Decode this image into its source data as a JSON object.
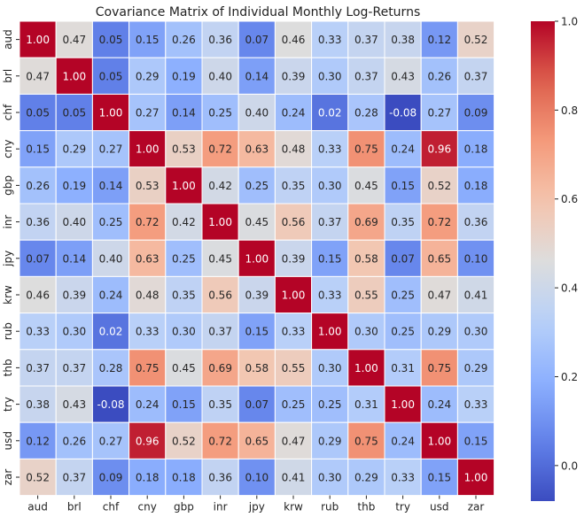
{
  "chart_data": {
    "type": "heatmap",
    "title": "Covariance Matrix of Individual Monthly Log-Returns",
    "xlabel": "",
    "ylabel": "",
    "categories": [
      "aud",
      "brl",
      "chf",
      "cny",
      "gbp",
      "inr",
      "jpy",
      "krw",
      "rub",
      "thb",
      "try",
      "usd",
      "zar"
    ],
    "values": [
      [
        1.0,
        0.47,
        0.05,
        0.15,
        0.26,
        0.36,
        0.07,
        0.46,
        0.33,
        0.37,
        0.38,
        0.12,
        0.52
      ],
      [
        0.47,
        1.0,
        0.05,
        0.29,
        0.19,
        0.4,
        0.14,
        0.39,
        0.3,
        0.37,
        0.43,
        0.26,
        0.37
      ],
      [
        0.05,
        0.05,
        1.0,
        0.27,
        0.14,
        0.25,
        0.4,
        0.24,
        0.02,
        0.28,
        -0.08,
        0.27,
        0.09
      ],
      [
        0.15,
        0.29,
        0.27,
        1.0,
        0.53,
        0.72,
        0.63,
        0.48,
        0.33,
        0.75,
        0.24,
        0.96,
        0.18
      ],
      [
        0.26,
        0.19,
        0.14,
        0.53,
        1.0,
        0.42,
        0.25,
        0.35,
        0.3,
        0.45,
        0.15,
        0.52,
        0.18
      ],
      [
        0.36,
        0.4,
        0.25,
        0.72,
        0.42,
        1.0,
        0.45,
        0.56,
        0.37,
        0.69,
        0.35,
        0.72,
        0.36
      ],
      [
        0.07,
        0.14,
        0.4,
        0.63,
        0.25,
        0.45,
        1.0,
        0.39,
        0.15,
        0.58,
        0.07,
        0.65,
        0.1
      ],
      [
        0.46,
        0.39,
        0.24,
        0.48,
        0.35,
        0.56,
        0.39,
        1.0,
        0.33,
        0.55,
        0.25,
        0.47,
        0.41
      ],
      [
        0.33,
        0.3,
        0.02,
        0.33,
        0.3,
        0.37,
        0.15,
        0.33,
        1.0,
        0.3,
        0.25,
        0.29,
        0.3
      ],
      [
        0.37,
        0.37,
        0.28,
        0.75,
        0.45,
        0.69,
        0.58,
        0.55,
        0.3,
        1.0,
        0.31,
        0.75,
        0.29
      ],
      [
        0.38,
        0.43,
        -0.08,
        0.24,
        0.15,
        0.35,
        0.07,
        0.25,
        0.25,
        0.31,
        1.0,
        0.24,
        0.33
      ],
      [
        0.12,
        0.26,
        0.27,
        0.96,
        0.52,
        0.72,
        0.65,
        0.47,
        0.29,
        0.75,
        0.24,
        1.0,
        0.15
      ],
      [
        0.52,
        0.37,
        0.09,
        0.18,
        0.18,
        0.36,
        0.1,
        0.41,
        0.3,
        0.29,
        0.33,
        0.15,
        1.0
      ]
    ],
    "value_format": "0.00",
    "colorscale": "coolwarm",
    "vmin": -0.08,
    "vmax": 1.0,
    "colorbar_ticks": [
      "0.0",
      "0.2",
      "0.4",
      "0.6",
      "0.8",
      "1.0"
    ],
    "colorbar_tick_values": [
      0.0,
      0.2,
      0.4,
      0.6,
      0.8,
      1.0
    ],
    "grid": true,
    "legend": "colorbar-right"
  }
}
